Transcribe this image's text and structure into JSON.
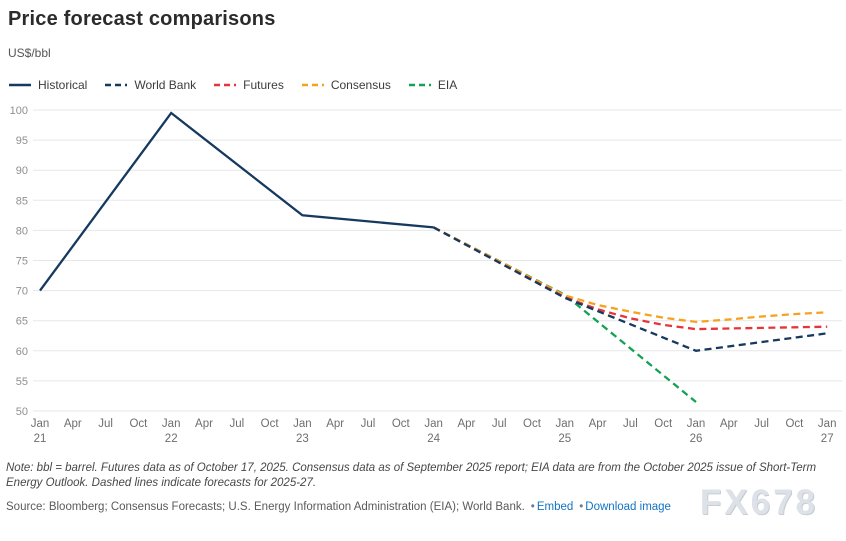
{
  "header": {
    "title": "Price forecast comparisons",
    "units": "US$/bbl"
  },
  "chart_data": {
    "type": "line",
    "title": "Price forecast comparisons",
    "ylabel": "US$/bbl",
    "ylim": [
      50,
      100
    ],
    "ytick_step": 5,
    "grid": "horizontal",
    "legend_position": "top",
    "x_ticks": [
      {
        "month": "Jan",
        "year": "21"
      },
      {
        "month": "Apr"
      },
      {
        "month": "Jul"
      },
      {
        "month": "Oct"
      },
      {
        "month": "Jan",
        "year": "22"
      },
      {
        "month": "Apr"
      },
      {
        "month": "Jul"
      },
      {
        "month": "Oct"
      },
      {
        "month": "Jan",
        "year": "23"
      },
      {
        "month": "Apr"
      },
      {
        "month": "Jul"
      },
      {
        "month": "Oct"
      },
      {
        "month": "Jan",
        "year": "24"
      },
      {
        "month": "Apr"
      },
      {
        "month": "Jul"
      },
      {
        "month": "Oct"
      },
      {
        "month": "Jan",
        "year": "25"
      },
      {
        "month": "Apr"
      },
      {
        "month": "Jul"
      },
      {
        "month": "Oct"
      },
      {
        "month": "Jan",
        "year": "26"
      },
      {
        "month": "Apr"
      },
      {
        "month": "Jul"
      },
      {
        "month": "Oct"
      },
      {
        "month": "Jan",
        "year": "27"
      }
    ],
    "series": [
      {
        "name": "Historical",
        "color": "#16395f",
        "dashed": false,
        "points": [
          [
            0,
            70
          ],
          [
            4,
            99.5
          ],
          [
            8,
            82.5
          ],
          [
            12,
            80.5
          ]
        ]
      },
      {
        "name": "World Bank",
        "color": "#16395f",
        "dashed": true,
        "points": [
          [
            12,
            80.5
          ],
          [
            16,
            68.8
          ],
          [
            20,
            60
          ],
          [
            24,
            62.9
          ]
        ]
      },
      {
        "name": "Futures",
        "color": "#e5343a",
        "dashed": true,
        "points": [
          [
            12,
            80.5
          ],
          [
            16,
            68.9
          ],
          [
            17,
            66.9
          ],
          [
            18,
            65.4
          ],
          [
            19,
            64.3
          ],
          [
            20,
            63.6
          ],
          [
            21,
            63.7
          ],
          [
            22,
            63.8
          ],
          [
            23,
            63.9
          ],
          [
            24,
            64
          ]
        ]
      },
      {
        "name": "Consensus",
        "color": "#f5a21d",
        "dashed": true,
        "points": [
          [
            12,
            80.5
          ],
          [
            16,
            69.2
          ],
          [
            17,
            67.6
          ],
          [
            18,
            66.5
          ],
          [
            19,
            65.5
          ],
          [
            20,
            64.8
          ],
          [
            21,
            65.2
          ],
          [
            22,
            65.7
          ],
          [
            23,
            66.1
          ],
          [
            24,
            66.4
          ]
        ]
      },
      {
        "name": "EIA",
        "color": "#12a354",
        "dashed": true,
        "points": [
          [
            12,
            80.5
          ],
          [
            16,
            69.3
          ],
          [
            20,
            51.5
          ]
        ]
      }
    ],
    "style": {
      "gridline_color": "#e7e7e7",
      "ytick_color": "#8f8f8f",
      "xtick_color": "#6e6e6e"
    }
  },
  "footer": {
    "note": "Note: bbl = barrel. Futures data as of October 17, 2025. Consensus data as of September 2025 report; EIA data are from the October 2025 issue of Short-Term Energy Outlook. Dashed lines indicate forecasts for 2025-27.",
    "source": "Source: Bloomberg; Consensus Forecasts; U.S. Energy Information Administration (EIA); World Bank.",
    "bullet": "•",
    "links": [
      {
        "label": "Embed"
      },
      {
        "label": "Download image"
      }
    ],
    "watermark": "FX678"
  }
}
